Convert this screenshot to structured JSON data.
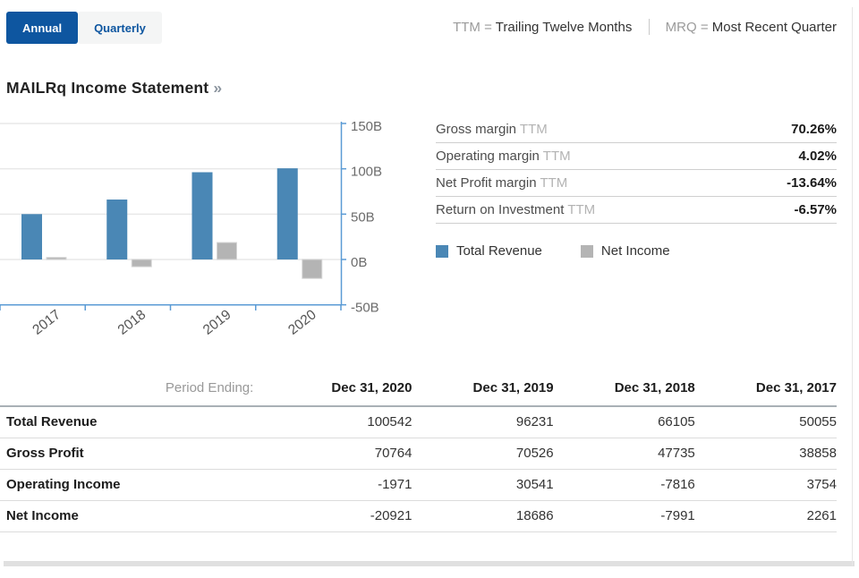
{
  "tabs": [
    {
      "label": "Annual",
      "active": true
    },
    {
      "label": "Quarterly",
      "active": false
    }
  ],
  "note": {
    "ttm_abbr": "TTM =",
    "ttm_def": "Trailing Twelve Months",
    "mrq_abbr": "MRQ =",
    "mrq_def": "Most Recent Quarter"
  },
  "title": {
    "text": "MAILRq Income Statement",
    "chevrons": "»"
  },
  "chart_data": {
    "type": "bar",
    "title": "MAILRq Income Statement chart",
    "categories": [
      "2017",
      "2018",
      "2019",
      "2020"
    ],
    "series": [
      {
        "name": "Total Revenue",
        "color": "#4a87b5",
        "values_billions": [
          50.055,
          66.105,
          96.231,
          100.542
        ]
      },
      {
        "name": "Net Income",
        "color": "#b4b4b4",
        "values_billions": [
          2.261,
          -7.991,
          18.686,
          -20.921
        ]
      }
    ],
    "y_ticks": [
      {
        "value": 150,
        "label": "150B"
      },
      {
        "value": 100,
        "label": "100B"
      },
      {
        "value": 50,
        "label": "50B"
      },
      {
        "value": 0,
        "label": "0B"
      },
      {
        "value": -50,
        "label": "-50B"
      }
    ],
    "ylim": [
      -50,
      150
    ],
    "grid": true,
    "axis_color": "#5b9bd5",
    "grid_color": "#e8e8e8",
    "tick_label_color": "#6b6b6b",
    "legend_position": "right-of-chart"
  },
  "ratios": {
    "rows": [
      {
        "label": "Gross margin",
        "abbr": "TTM",
        "value": "70.26%"
      },
      {
        "label": "Operating margin",
        "abbr": "TTM",
        "value": "4.02%"
      },
      {
        "label": "Net Profit margin",
        "abbr": "TTM",
        "value": "-13.64%"
      },
      {
        "label": "Return on Investment",
        "abbr": "TTM",
        "value": "-6.57%"
      }
    ]
  },
  "legend": {
    "items": [
      {
        "label": "Total Revenue",
        "color": "#4a87b5"
      },
      {
        "label": "Net Income",
        "color": "#b4b4b4"
      }
    ]
  },
  "table": {
    "period_label": "Period Ending:",
    "columns": [
      "Dec 31, 2020",
      "Dec 31, 2019",
      "Dec 31, 2018",
      "Dec 31, 2017"
    ],
    "rows": [
      {
        "label": "Total Revenue",
        "values": [
          "100542",
          "96231",
          "66105",
          "50055"
        ]
      },
      {
        "label": "Gross Profit",
        "values": [
          "70764",
          "70526",
          "47735",
          "38858"
        ]
      },
      {
        "label": "Operating Income",
        "values": [
          "-1971",
          "30541",
          "-7816",
          "3754"
        ]
      },
      {
        "label": "Net Income",
        "values": [
          "-20921",
          "18686",
          "-7991",
          "2261"
        ]
      }
    ]
  }
}
